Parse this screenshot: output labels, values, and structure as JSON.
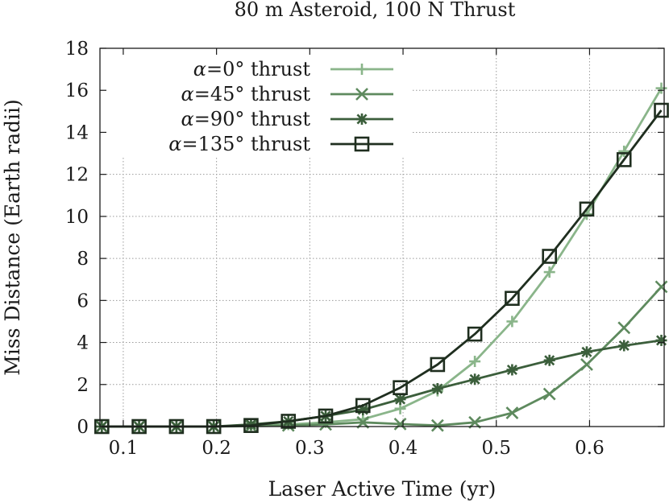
{
  "chart_data": {
    "type": "line",
    "title": "80 m Asteroid, 100 N Thrust",
    "xlabel": "Laser Active Time (yr)",
    "ylabel": "Miss Distance (Earth radii)",
    "xlim": [
      0.075,
      0.68
    ],
    "ylim": [
      0,
      18
    ],
    "xticks": [
      {
        "value": 0.1,
        "label": "0.1"
      },
      {
        "value": 0.2,
        "label": "0.2"
      },
      {
        "value": 0.3,
        "label": "0.3"
      },
      {
        "value": 0.4,
        "label": "0.4"
      },
      {
        "value": 0.5,
        "label": "0.5"
      },
      {
        "value": 0.6,
        "label": "0.6"
      }
    ],
    "yticks": [
      {
        "value": 0,
        "label": "0"
      },
      {
        "value": 2,
        "label": "2"
      },
      {
        "value": 4,
        "label": "4"
      },
      {
        "value": 6,
        "label": "6"
      },
      {
        "value": 8,
        "label": "8"
      },
      {
        "value": 10,
        "label": "10"
      },
      {
        "value": 12,
        "label": "12"
      },
      {
        "value": 14,
        "label": "14"
      },
      {
        "value": 16,
        "label": "16"
      },
      {
        "value": 18,
        "label": "18"
      }
    ],
    "grid": true,
    "legend_position": "top-left",
    "x": [
      0.077,
      0.117,
      0.157,
      0.197,
      0.237,
      0.277,
      0.317,
      0.357,
      0.397,
      0.437,
      0.477,
      0.517,
      0.557,
      0.597,
      0.637,
      0.677
    ],
    "series": [
      {
        "name": "=0° thrust",
        "symbol": "α",
        "marker": "plus",
        "color": "#8ab58a",
        "values": [
          0,
          0,
          0,
          0,
          0.05,
          0.1,
          0.2,
          0.35,
          0.85,
          1.7,
          3.1,
          5.0,
          7.35,
          10.1,
          13.1,
          16.1
        ]
      },
      {
        "name": "=45° thrust",
        "symbol": "α",
        "marker": "cross",
        "color": "#5e8a5e",
        "values": [
          0,
          0,
          0,
          0,
          0.02,
          0.05,
          0.1,
          0.2,
          0.12,
          0.05,
          0.2,
          0.65,
          1.55,
          2.95,
          4.7,
          6.65
        ]
      },
      {
        "name": "=90° thrust",
        "symbol": "α",
        "marker": "star",
        "color": "#3b5e3b",
        "values": [
          0,
          0,
          0,
          0,
          0.1,
          0.25,
          0.5,
          0.8,
          1.3,
          1.8,
          2.25,
          2.7,
          3.15,
          3.55,
          3.85,
          4.1
        ]
      },
      {
        "name": "=135° thrust",
        "symbol": "α",
        "marker": "square",
        "color": "#1f2e1f",
        "values": [
          0,
          0,
          0,
          0,
          0.05,
          0.25,
          0.5,
          1.0,
          1.85,
          2.95,
          4.4,
          6.1,
          8.1,
          10.35,
          12.7,
          15.05
        ]
      }
    ]
  }
}
